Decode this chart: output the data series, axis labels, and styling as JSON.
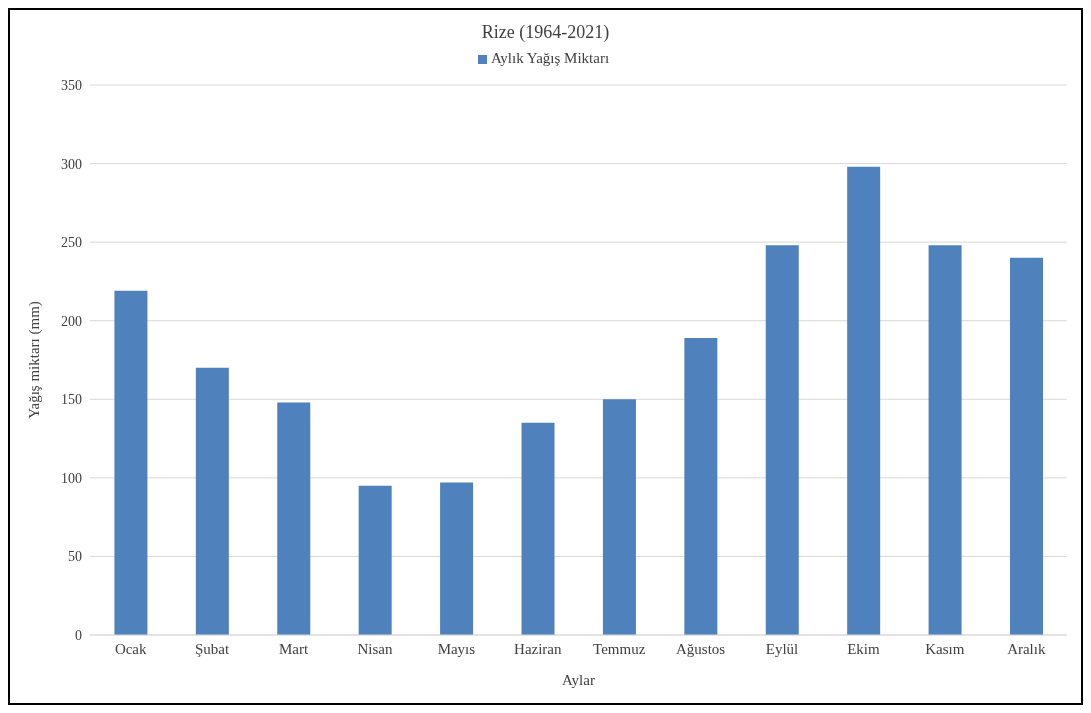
{
  "chart_data": {
    "type": "bar",
    "title": "Rize (1964-2021)",
    "xlabel": "Aylar",
    "ylabel": "Yağış miktarı (mm)",
    "categories": [
      "Ocak",
      "Şubat",
      "Mart",
      "Nisan",
      "Mayıs",
      "Haziran",
      "Temmuz",
      "Ağustos",
      "Eylül",
      "Ekim",
      "Kasım",
      "Aralık"
    ],
    "series": [
      {
        "name": "Aylık Yağış Miktarı",
        "color": "#4f81bd",
        "values": [
          219,
          170,
          148,
          95,
          97,
          135,
          150,
          189,
          248,
          298,
          248,
          240
        ]
      }
    ],
    "ylim": [
      0,
      350
    ],
    "yticks": [
      0,
      50,
      100,
      150,
      200,
      250,
      300,
      350
    ],
    "grid": "y",
    "legend": "top"
  }
}
